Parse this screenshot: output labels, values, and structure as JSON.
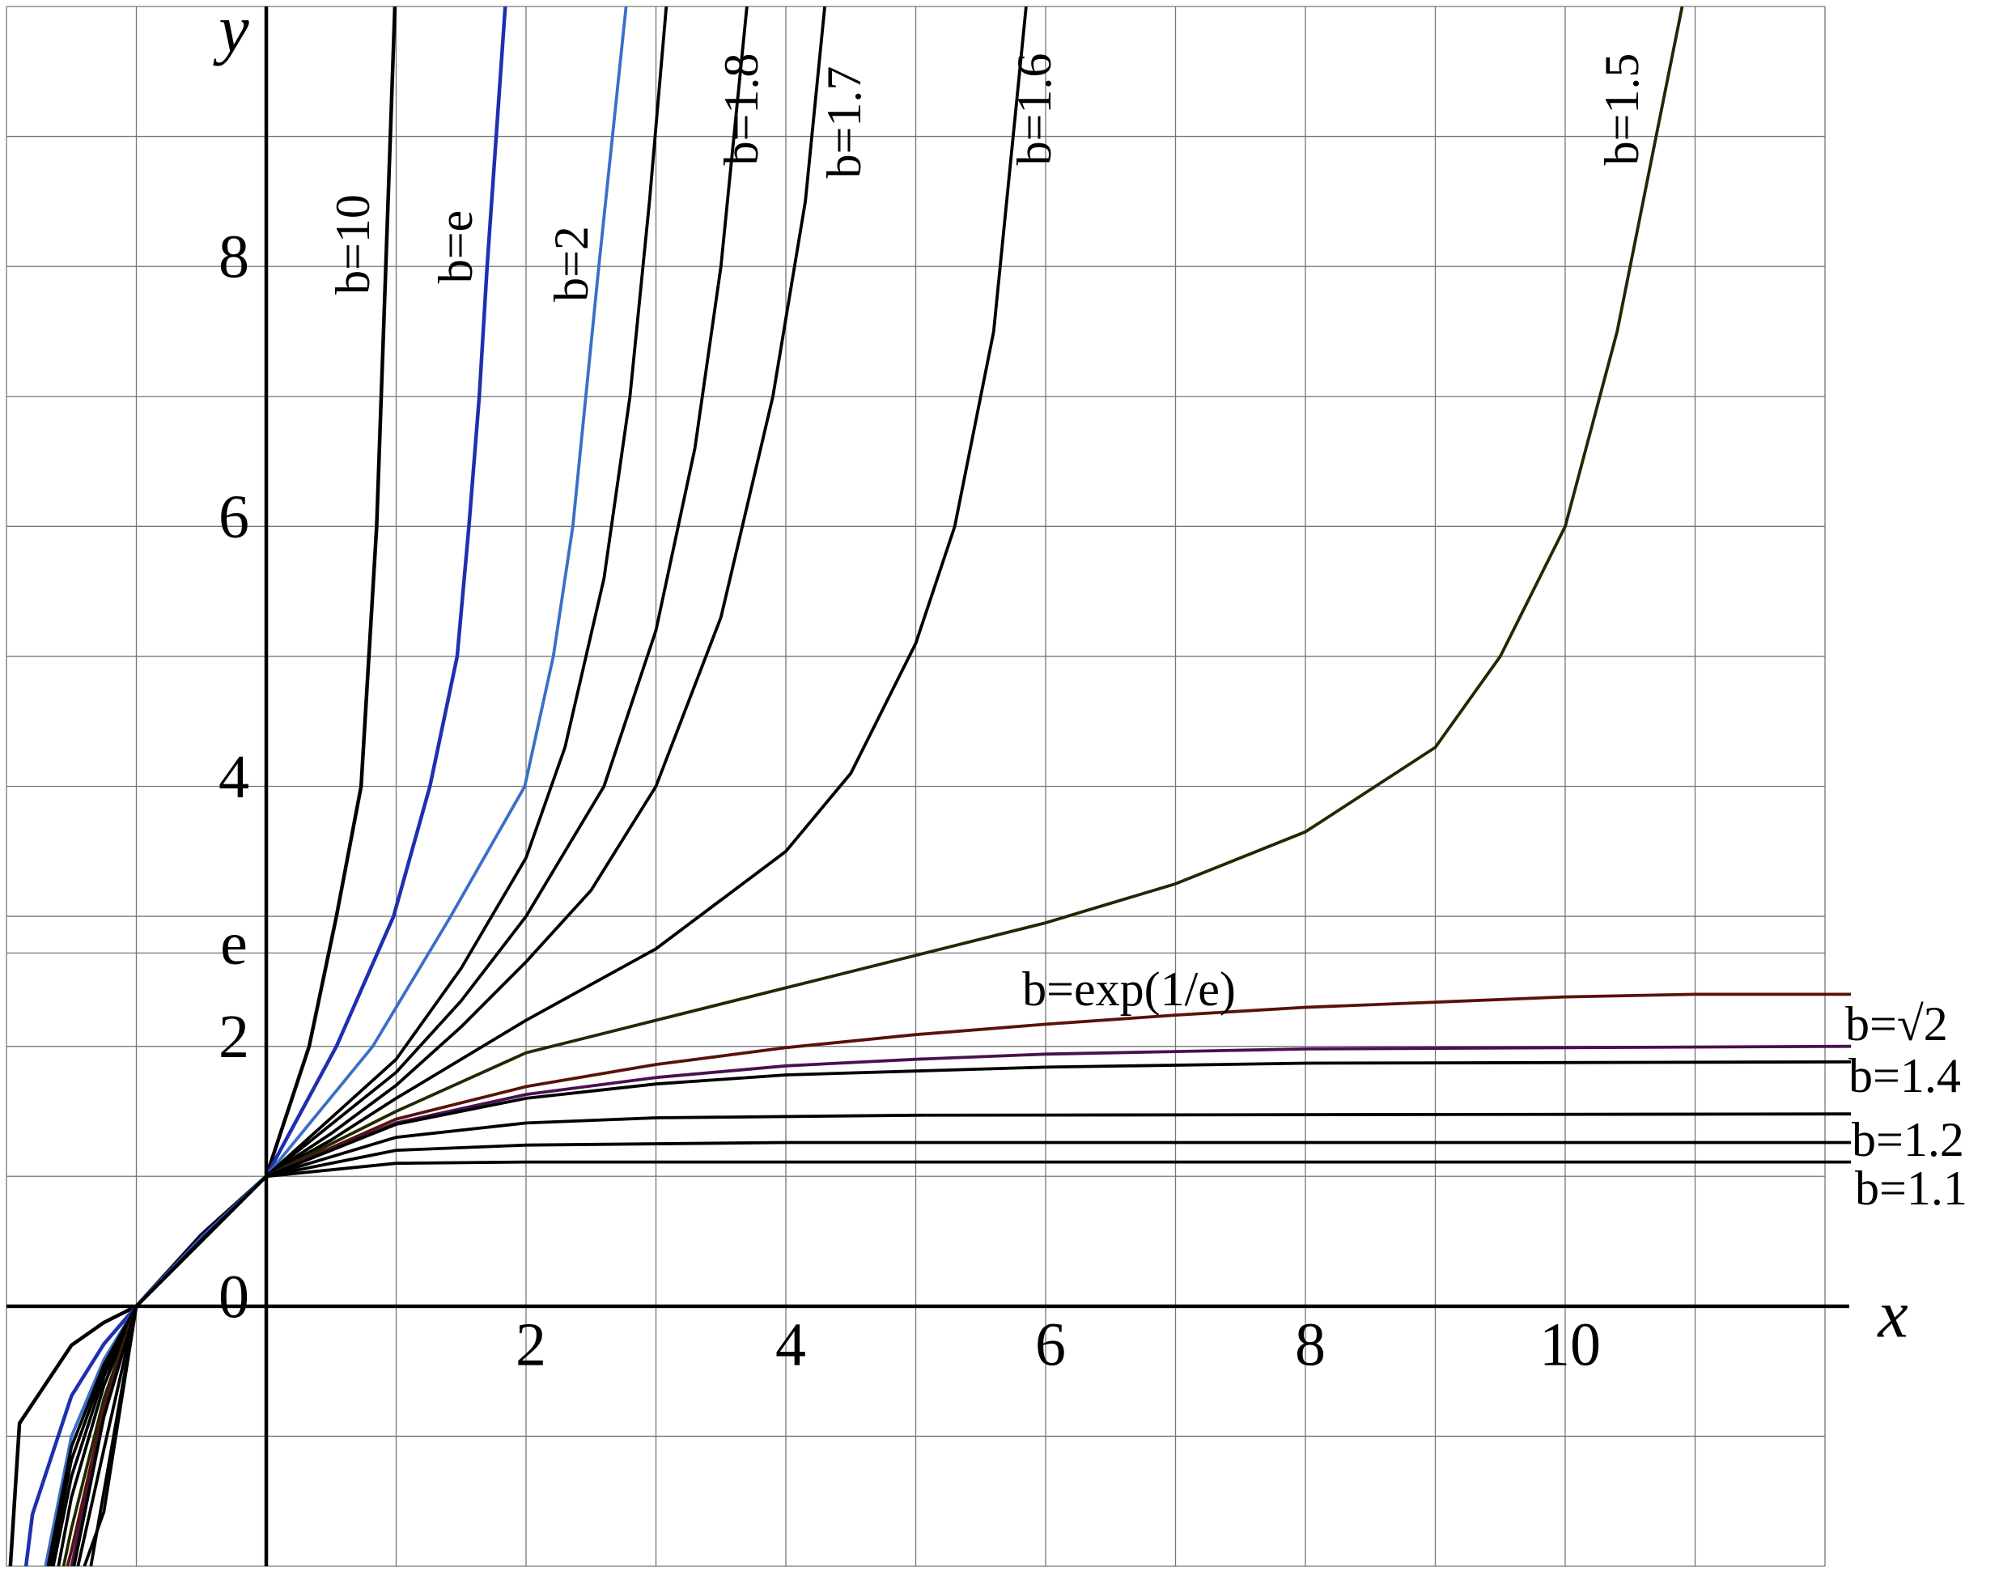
{
  "chart_data": {
    "type": "line",
    "xlabel": "x",
    "ylabel": "y",
    "xlim": [
      -2,
      12
    ],
    "ylim": [
      -2,
      10
    ],
    "xticks": [
      2,
      4,
      6,
      8,
      10
    ],
    "yticks": [
      0,
      2,
      {
        "value": 2.718,
        "label": "e"
      },
      4,
      6,
      8
    ],
    "xgrid": [
      -2,
      -1,
      0,
      1,
      2,
      3,
      4,
      5,
      6,
      7,
      8,
      9,
      10,
      11,
      12
    ],
    "ygrid": [
      -2,
      -1,
      0,
      1,
      2,
      3,
      4,
      5,
      6,
      7,
      8,
      9,
      10
    ],
    "grid": true,
    "series": [
      {
        "name": "b=10",
        "color": "#000000",
        "x": [
          -1.97,
          -1.9,
          -1.5,
          -1.25,
          -1,
          -0.5,
          0,
          0.33,
          0.54,
          0.73,
          0.85,
          0.92,
          0.99
        ],
        "values": [
          -2,
          -0.9,
          -0.3,
          -0.125,
          0,
          0.55,
          1,
          2,
          3,
          4,
          6,
          8,
          10
        ]
      },
      {
        "name": "b=e",
        "color": "#1f2fb0",
        "x": [
          -1.85,
          -1.8,
          -1.5,
          -1.25,
          -1,
          -0.5,
          0,
          0.54,
          0.98,
          1.26,
          1.47,
          1.56,
          1.64,
          1.7,
          1.84
        ],
        "values": [
          -2,
          -1.6,
          -0.69,
          -0.29,
          0,
          0.53,
          1,
          2,
          3,
          4,
          5,
          6,
          7,
          8,
          10
        ]
      },
      {
        "name": "b=2",
        "color": "#3a6fc8",
        "x": [
          -1.7,
          -1.5,
          -1.25,
          -1,
          -0.5,
          0,
          0.82,
          1.42,
          1.99,
          2.21,
          2.36,
          2.56,
          2.77
        ],
        "values": [
          -2,
          -1.0,
          -0.41,
          0,
          0.52,
          1,
          2,
          3,
          4,
          5,
          6,
          8,
          10
        ]
      },
      {
        "color": "#000000",
        "x": [
          -1.68,
          -1.5,
          -1.25,
          -1,
          -0.5,
          0,
          0.5,
          1,
          1.5,
          2,
          2.3,
          2.6,
          2.8,
          2.95,
          3.08
        ],
        "values": [
          -2,
          -1.08,
          -0.45,
          0,
          0.51,
          1,
          1.45,
          1.9,
          2.6,
          3.45,
          4.3,
          5.6,
          7,
          8.5,
          10
        ]
      },
      {
        "name": "b=1.8",
        "color": "#000000",
        "x": [
          -1.66,
          -1.5,
          -1.25,
          -1,
          -0.5,
          0,
          0.5,
          1,
          1.5,
          2,
          2.6,
          3.0,
          3.3,
          3.5,
          3.7
        ],
        "values": [
          -2,
          -1.18,
          -0.49,
          0,
          0.5,
          1,
          1.4,
          1.8,
          2.35,
          3.0,
          4.0,
          5.2,
          6.6,
          8,
          10
        ]
      },
      {
        "name": "b=1.7",
        "color": "#000000",
        "x": [
          -1.64,
          -1.5,
          -1.25,
          -1,
          -0.5,
          0,
          0.5,
          1,
          1.5,
          2,
          2.5,
          3,
          3.5,
          3.9,
          4.15,
          4.3
        ],
        "values": [
          -2,
          -1.31,
          -0.54,
          0,
          0.5,
          1,
          1.33,
          1.7,
          2.15,
          2.65,
          3.2,
          4.0,
          5.3,
          7,
          8.5,
          10
        ]
      },
      {
        "name": "b=1.6",
        "color": "#000000",
        "x": [
          -1.6,
          -1.5,
          -1.25,
          -1,
          -0.5,
          0,
          0.5,
          1,
          2,
          3,
          4,
          4.5,
          5,
          5.3,
          5.6,
          5.85
        ],
        "values": [
          -2,
          -1.47,
          -0.61,
          0,
          0.5,
          1,
          1.28,
          1.6,
          2.2,
          2.75,
          3.5,
          4.1,
          5.1,
          6,
          7.5,
          10
        ]
      },
      {
        "name": "b=1.5",
        "color": "#1e2a00",
        "x": [
          -1.56,
          -1.5,
          -1.25,
          -1,
          -0.5,
          0,
          1,
          2,
          3,
          4,
          5,
          6,
          7,
          8,
          9,
          9.5,
          10,
          10.4,
          10.7,
          10.9
        ],
        "values": [
          -2,
          -1.71,
          -0.71,
          0,
          0.5,
          1,
          1.5,
          1.95,
          2.2,
          2.45,
          2.7,
          2.95,
          3.25,
          3.65,
          4.3,
          5,
          6,
          7.5,
          9,
          10
        ]
      },
      {
        "name": "b=exp(1/e)",
        "color": "#5a1208",
        "x": [
          -1.53,
          -1.5,
          -1.25,
          -1,
          -0.5,
          0,
          1,
          2,
          3,
          4,
          5,
          6,
          7,
          8,
          9,
          10,
          11,
          12.2
        ],
        "values": [
          -2,
          -1.88,
          -0.78,
          0,
          0.5,
          1,
          1.44,
          1.69,
          1.86,
          1.99,
          2.09,
          2.17,
          2.24,
          2.3,
          2.34,
          2.38,
          2.4,
          2.4
        ]
      },
      {
        "name": "b=√2",
        "color": "#4a1050",
        "x": [
          -1.5,
          -1.25,
          -1,
          -0.5,
          0,
          1,
          2,
          3,
          4,
          5,
          6,
          7,
          8,
          10,
          12.2
        ],
        "values": [
          -2,
          -0.83,
          0,
          0.5,
          1,
          1.41,
          1.63,
          1.76,
          1.85,
          1.9,
          1.94,
          1.96,
          1.98,
          1.99,
          2.0
        ]
      },
      {
        "name": "b=1.4",
        "color": "#000000",
        "x": [
          -1.48,
          -1.25,
          -1,
          -0.5,
          0,
          1,
          2,
          3,
          4,
          6,
          8,
          12.2
        ],
        "values": [
          -2,
          -0.85,
          0,
          0.5,
          1,
          1.4,
          1.6,
          1.71,
          1.78,
          1.84,
          1.87,
          1.88
        ]
      },
      {
        "color": "#000000",
        "x": [
          -1.45,
          -1.25,
          -1,
          -0.5,
          0,
          1,
          2,
          3,
          5,
          12.2
        ],
        "values": [
          -2,
          -1.1,
          0,
          0.5,
          1,
          1.3,
          1.41,
          1.45,
          1.47,
          1.48
        ]
      },
      {
        "name": "b=1.2",
        "color": "#000000",
        "x": [
          -1.4,
          -1.25,
          -1,
          -0.5,
          0,
          1,
          2,
          4,
          12.2
        ],
        "values": [
          -2,
          -1.58,
          0,
          0.5,
          1,
          1.2,
          1.24,
          1.26,
          1.26
        ]
      },
      {
        "name": "b=1.1",
        "color": "#000000",
        "x": [
          -1.35,
          -1,
          -0.5,
          0,
          1,
          2,
          12.2
        ],
        "values": [
          -2,
          0,
          0.5,
          1,
          1.1,
          1.11,
          1.11
        ]
      }
    ]
  }
}
